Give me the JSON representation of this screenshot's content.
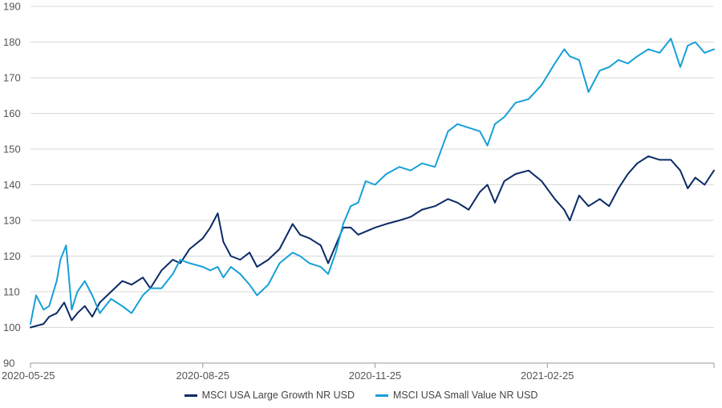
{
  "chart_data": {
    "type": "line",
    "title": "",
    "xlabel": "",
    "ylabel": "",
    "ylim": [
      90,
      190
    ],
    "y_ticks": [
      90,
      100,
      110,
      120,
      130,
      140,
      150,
      160,
      170,
      180,
      190
    ],
    "x_range": [
      "2020-05-25",
      "2021-05-25"
    ],
    "x_ticks": [
      "2020-05-25",
      "2020-08-25",
      "2020-11-25",
      "2021-02-25"
    ],
    "grid": "horizontal",
    "legend_position": "bottom",
    "series": [
      {
        "name": "MSCI USA Large Growth NR USD",
        "color": "#0b2a66",
        "points": [
          [
            "2020-05-25",
            100
          ],
          [
            "2020-06-01",
            101
          ],
          [
            "2020-06-04",
            103
          ],
          [
            "2020-06-08",
            104
          ],
          [
            "2020-06-12",
            107
          ],
          [
            "2020-06-16",
            102
          ],
          [
            "2020-06-19",
            104
          ],
          [
            "2020-06-23",
            106
          ],
          [
            "2020-06-27",
            103
          ],
          [
            "2020-07-01",
            107
          ],
          [
            "2020-07-07",
            110
          ],
          [
            "2020-07-13",
            113
          ],
          [
            "2020-07-18",
            112
          ],
          [
            "2020-07-24",
            114
          ],
          [
            "2020-07-28",
            111
          ],
          [
            "2020-08-03",
            116
          ],
          [
            "2020-08-09",
            119
          ],
          [
            "2020-08-13",
            118
          ],
          [
            "2020-08-18",
            122
          ],
          [
            "2020-08-25",
            125
          ],
          [
            "2020-08-29",
            128
          ],
          [
            "2020-09-02",
            132
          ],
          [
            "2020-09-05",
            124
          ],
          [
            "2020-09-09",
            120
          ],
          [
            "2020-09-14",
            119
          ],
          [
            "2020-09-19",
            121
          ],
          [
            "2020-09-23",
            117
          ],
          [
            "2020-09-29",
            119
          ],
          [
            "2020-10-05",
            122
          ],
          [
            "2020-10-12",
            129
          ],
          [
            "2020-10-16",
            126
          ],
          [
            "2020-10-21",
            125
          ],
          [
            "2020-10-27",
            123
          ],
          [
            "2020-10-31",
            118
          ],
          [
            "2020-11-04",
            123
          ],
          [
            "2020-11-08",
            128
          ],
          [
            "2020-11-12",
            128
          ],
          [
            "2020-11-16",
            126
          ],
          [
            "2020-11-25",
            128
          ],
          [
            "2020-12-01",
            129
          ],
          [
            "2020-12-08",
            130
          ],
          [
            "2020-12-14",
            131
          ],
          [
            "2020-12-20",
            133
          ],
          [
            "2020-12-27",
            134
          ],
          [
            "2021-01-03",
            136
          ],
          [
            "2021-01-08",
            135
          ],
          [
            "2021-01-14",
            133
          ],
          [
            "2021-01-20",
            138
          ],
          [
            "2021-01-24",
            140
          ],
          [
            "2021-01-28",
            135
          ],
          [
            "2021-02-02",
            141
          ],
          [
            "2021-02-08",
            143
          ],
          [
            "2021-02-15",
            144
          ],
          [
            "2021-02-22",
            141
          ],
          [
            "2021-03-01",
            136
          ],
          [
            "2021-03-06",
            133
          ],
          [
            "2021-03-09",
            130
          ],
          [
            "2021-03-14",
            137
          ],
          [
            "2021-03-19",
            134
          ],
          [
            "2021-03-25",
            136
          ],
          [
            "2021-03-30",
            134
          ],
          [
            "2021-04-04",
            139
          ],
          [
            "2021-04-09",
            143
          ],
          [
            "2021-04-14",
            146
          ],
          [
            "2021-04-20",
            148
          ],
          [
            "2021-04-26",
            147
          ],
          [
            "2021-05-02",
            147
          ],
          [
            "2021-05-07",
            144
          ],
          [
            "2021-05-11",
            139
          ],
          [
            "2021-05-15",
            142
          ],
          [
            "2021-05-20",
            140
          ],
          [
            "2021-05-25",
            144
          ]
        ]
      },
      {
        "name": "MSCI USA Small Value NR USD",
        "color": "#16a0d8",
        "points": [
          [
            "2020-05-25",
            101
          ],
          [
            "2020-05-28",
            109
          ],
          [
            "2020-06-01",
            105
          ],
          [
            "2020-06-04",
            106
          ],
          [
            "2020-06-08",
            113
          ],
          [
            "2020-06-10",
            119
          ],
          [
            "2020-06-13",
            123
          ],
          [
            "2020-06-16",
            105
          ],
          [
            "2020-06-19",
            110
          ],
          [
            "2020-06-23",
            113
          ],
          [
            "2020-06-27",
            109
          ],
          [
            "2020-07-01",
            104
          ],
          [
            "2020-07-07",
            108
          ],
          [
            "2020-07-13",
            106
          ],
          [
            "2020-07-18",
            104
          ],
          [
            "2020-07-24",
            109
          ],
          [
            "2020-07-28",
            111
          ],
          [
            "2020-08-03",
            111
          ],
          [
            "2020-08-09",
            115
          ],
          [
            "2020-08-13",
            119
          ],
          [
            "2020-08-18",
            118
          ],
          [
            "2020-08-25",
            117
          ],
          [
            "2020-08-29",
            116
          ],
          [
            "2020-09-02",
            117
          ],
          [
            "2020-09-05",
            114
          ],
          [
            "2020-09-09",
            117
          ],
          [
            "2020-09-14",
            115
          ],
          [
            "2020-09-19",
            112
          ],
          [
            "2020-09-23",
            109
          ],
          [
            "2020-09-29",
            112
          ],
          [
            "2020-10-05",
            118
          ],
          [
            "2020-10-12",
            121
          ],
          [
            "2020-10-16",
            120
          ],
          [
            "2020-10-21",
            118
          ],
          [
            "2020-10-27",
            117
          ],
          [
            "2020-10-31",
            115
          ],
          [
            "2020-11-04",
            121
          ],
          [
            "2020-11-08",
            129
          ],
          [
            "2020-11-12",
            134
          ],
          [
            "2020-11-16",
            135
          ],
          [
            "2020-11-20",
            141
          ],
          [
            "2020-11-25",
            140
          ],
          [
            "2020-12-01",
            143
          ],
          [
            "2020-12-08",
            145
          ],
          [
            "2020-12-14",
            144
          ],
          [
            "2020-12-20",
            146
          ],
          [
            "2020-12-27",
            145
          ],
          [
            "2021-01-03",
            155
          ],
          [
            "2021-01-08",
            157
          ],
          [
            "2021-01-14",
            156
          ],
          [
            "2021-01-20",
            155
          ],
          [
            "2021-01-24",
            151
          ],
          [
            "2021-01-28",
            157
          ],
          [
            "2021-02-02",
            159
          ],
          [
            "2021-02-08",
            163
          ],
          [
            "2021-02-15",
            164
          ],
          [
            "2021-02-22",
            168
          ],
          [
            "2021-03-01",
            174
          ],
          [
            "2021-03-06",
            178
          ],
          [
            "2021-03-09",
            176
          ],
          [
            "2021-03-14",
            175
          ],
          [
            "2021-03-19",
            166
          ],
          [
            "2021-03-25",
            172
          ],
          [
            "2021-03-30",
            173
          ],
          [
            "2021-04-04",
            175
          ],
          [
            "2021-04-09",
            174
          ],
          [
            "2021-04-14",
            176
          ],
          [
            "2021-04-20",
            178
          ],
          [
            "2021-04-26",
            177
          ],
          [
            "2021-05-02",
            181
          ],
          [
            "2021-05-07",
            173
          ],
          [
            "2021-05-11",
            179
          ],
          [
            "2021-05-15",
            180
          ],
          [
            "2021-05-20",
            177
          ],
          [
            "2021-05-25",
            178
          ]
        ]
      }
    ]
  }
}
